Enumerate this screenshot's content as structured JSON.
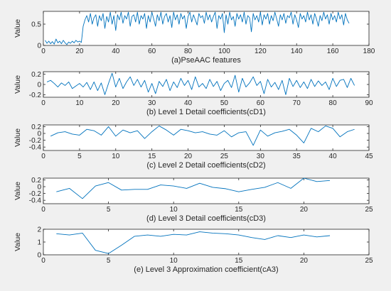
{
  "figure": {
    "background": "#f0f0f0",
    "line_color": "#0072bd"
  },
  "chart_data": [
    {
      "type": "line",
      "title": "(a)PseAAC features",
      "xlabel": "(a)PseAAC features",
      "ylabel": "Value",
      "xlim": [
        0,
        180
      ],
      "ylim": [
        0,
        0.8
      ],
      "xticks": [
        0,
        20,
        40,
        60,
        80,
        100,
        120,
        140,
        160,
        180
      ],
      "yticks": [
        0,
        0.5
      ],
      "ytick_labels": [
        "0",
        "0.5"
      ],
      "grid": false,
      "series": [
        {
          "values": [
            0.12,
            0.05,
            0.1,
            0.04,
            0.09,
            0.03,
            0.15,
            0.06,
            0.1,
            0.04,
            0.12,
            0.06,
            0.02,
            0.08,
            0.05,
            0.1,
            0.06,
            0.12,
            0.08,
            0.1,
            0.07,
            0.45,
            0.6,
            0.7,
            0.55,
            0.75,
            0.5,
            0.65,
            0.72,
            0.45,
            0.7,
            0.58,
            0.75,
            0.4,
            0.68,
            0.55,
            0.78,
            0.5,
            0.7,
            0.35,
            0.72,
            0.6,
            0.78,
            0.52,
            0.7,
            0.62,
            0.78,
            0.45,
            0.68,
            0.72,
            0.55,
            0.78,
            0.5,
            0.7,
            0.62,
            0.75,
            0.4,
            0.7,
            0.55,
            0.78,
            0.62,
            0.45,
            0.72,
            0.58,
            0.78,
            0.5,
            0.68,
            0.75,
            0.55,
            0.7,
            0.42,
            0.78,
            0.6,
            0.72,
            0.5,
            0.75,
            0.62,
            0.7,
            0.4,
            0.68,
            0.78,
            0.55,
            0.72,
            0.6,
            0.48,
            0.75,
            0.65,
            0.7,
            0.52,
            0.78,
            0.6,
            0.72,
            0.55,
            0.68,
            0.78,
            0.4,
            0.7,
            0.62,
            0.75,
            0.3,
            0.72,
            0.5,
            0.78,
            0.6,
            0.68,
            0.45,
            0.75,
            0.62,
            0.72,
            0.55,
            0.78,
            0.5,
            0.7,
            0.65,
            0.32,
            0.75,
            0.6,
            0.7,
            0.55,
            0.78,
            0.48,
            0.72,
            0.62,
            0.75,
            0.5,
            0.7,
            0.58,
            0.78,
            0.62,
            0.45,
            0.72,
            0.6,
            0.75,
            0.52,
            0.7,
            0.65,
            0.78,
            0.5,
            0.72,
            0.6,
            0.42,
            0.75,
            0.62,
            0.7,
            0.55,
            0.78,
            0.6,
            0.72,
            0.5,
            0.75,
            0.62,
            0.45,
            0.7,
            0.58,
            0.78,
            0.62,
            0.72,
            0.5,
            0.75,
            0.6,
            0.7,
            0.55,
            0.78,
            0.62,
            0.72,
            0.48,
            0.75,
            0.6,
            0.52
          ]
        }
      ]
    },
    {
      "type": "line",
      "title": "(b) Level 1 Detail coefficients(cD1)",
      "xlabel": "(b) Level 1 Detail coefficients(cD1)",
      "ylabel": "Value",
      "xlim": [
        0,
        90
      ],
      "ylim": [
        -0.25,
        0.25
      ],
      "xticks": [
        0,
        10,
        20,
        30,
        40,
        50,
        60,
        70,
        80,
        90
      ],
      "yticks": [
        -0.2,
        0,
        0.2
      ],
      "ytick_labels": [
        "-0.2",
        "0",
        "0.2"
      ],
      "grid": false,
      "series": [
        {
          "values": [
            0.05,
            0.08,
            0.02,
            -0.05,
            0.03,
            -0.02,
            0.05,
            -0.08,
            -0.03,
            0.02,
            -0.05,
            0.04,
            -0.1,
            0.05,
            -0.12,
            0.03,
            -0.2,
            0.02,
            0.22,
            -0.05,
            0.12,
            -0.08,
            0.05,
            0.15,
            -0.02,
            0.1,
            -0.05,
            0.08,
            -0.15,
            0.02,
            -0.18,
            0.06,
            -0.04,
            0.1,
            -0.12,
            0.05,
            -0.06,
            0.12,
            -0.02,
            0.08,
            -0.1,
            0.15,
            -0.05,
            0.02,
            -0.08,
            0.1,
            -0.04,
            0.06,
            -0.12,
            0.02,
            0.08,
            -0.06,
            0.18,
            -0.15,
            0.12,
            -0.05,
            0.03,
            0.15,
            -0.02,
            0.06,
            -0.18,
            0.1,
            -0.05,
            0.04,
            -0.1,
            0.08,
            -0.2,
            0.12,
            -0.04,
            0.08,
            -0.06,
            0.05,
            -0.08,
            0.1,
            -0.04,
            0.07,
            -0.02,
            0.05,
            -0.1,
            0.12,
            -0.04,
            0.08,
            0.1,
            -0.06,
            0.12,
            -0.02
          ]
        }
      ]
    },
    {
      "type": "line",
      "title": "(c) Level 2 Detail coefficients(cD2)",
      "xlabel": "(c) Level 2 Detail coefficients(cD2)",
      "ylabel": "Value",
      "xlim": [
        0,
        45
      ],
      "ylim": [
        -0.5,
        0.25
      ],
      "xticks": [
        0,
        5,
        10,
        15,
        20,
        25,
        30,
        35,
        40,
        45
      ],
      "yticks": [
        -0.4,
        -0.2,
        0,
        0.2
      ],
      "ytick_labels": [
        "-0.4",
        "-0.2",
        "0",
        "0.2"
      ],
      "grid": false,
      "series": [
        {
          "values": [
            -0.08,
            0.02,
            0.05,
            -0.02,
            -0.05,
            0.12,
            0.08,
            -0.05,
            0.2,
            -0.08,
            0.1,
            0.02,
            0.08,
            -0.15,
            0.05,
            0.22,
            0.1,
            -0.05,
            0.12,
            0.08,
            0.02,
            0.05,
            -0.02,
            -0.05,
            0.08,
            -0.1,
            0.02,
            0.05,
            -0.35,
            0.1,
            -0.08,
            0.02,
            0.06,
            0.12,
            -0.05,
            -0.28,
            0.15,
            0.05,
            0.22,
            0.15,
            -0.1,
            0.05,
            0.12
          ]
        }
      ]
    },
    {
      "type": "line",
      "title": "(d) Level 3 Detail coefficients(cD3)",
      "xlabel": "(d) Level 3 Detail coefficients(cD3)",
      "ylabel": "Value",
      "xlim": [
        0,
        25
      ],
      "ylim": [
        -0.5,
        0.25
      ],
      "xticks": [
        0,
        5,
        10,
        15,
        20,
        25
      ],
      "yticks": [
        -0.4,
        -0.2,
        0,
        0.2
      ],
      "ytick_labels": [
        "-0.4",
        "-0.2",
        "0",
        "0.2"
      ],
      "grid": false,
      "series": [
        {
          "values": [
            -0.15,
            -0.05,
            -0.35,
            0.02,
            0.12,
            -0.1,
            -0.08,
            -0.08,
            0.05,
            0.02,
            -0.05,
            0.1,
            -0.02,
            -0.06,
            -0.15,
            -0.08,
            -0.02,
            0.12,
            -0.05,
            0.25,
            0.15,
            0.18
          ]
        }
      ]
    },
    {
      "type": "line",
      "title": "(e) Level 3 Approximation coefficient(cA3)",
      "xlabel": "(e) Level 3 Approximation coefficient(cA3)",
      "ylabel": "Value",
      "xlim": [
        0,
        25
      ],
      "ylim": [
        0,
        2
      ],
      "xticks": [
        0,
        5,
        10,
        15,
        20,
        25
      ],
      "yticks": [
        0,
        1,
        2
      ],
      "ytick_labels": [
        "0",
        "1",
        "2"
      ],
      "grid": false,
      "series": [
        {
          "values": [
            1.65,
            1.55,
            1.7,
            0.35,
            0.1,
            0.75,
            1.45,
            1.55,
            1.45,
            1.6,
            1.55,
            1.8,
            1.7,
            1.65,
            1.55,
            1.35,
            1.2,
            1.5,
            1.35,
            1.55,
            1.4,
            1.5
          ]
        }
      ]
    }
  ]
}
